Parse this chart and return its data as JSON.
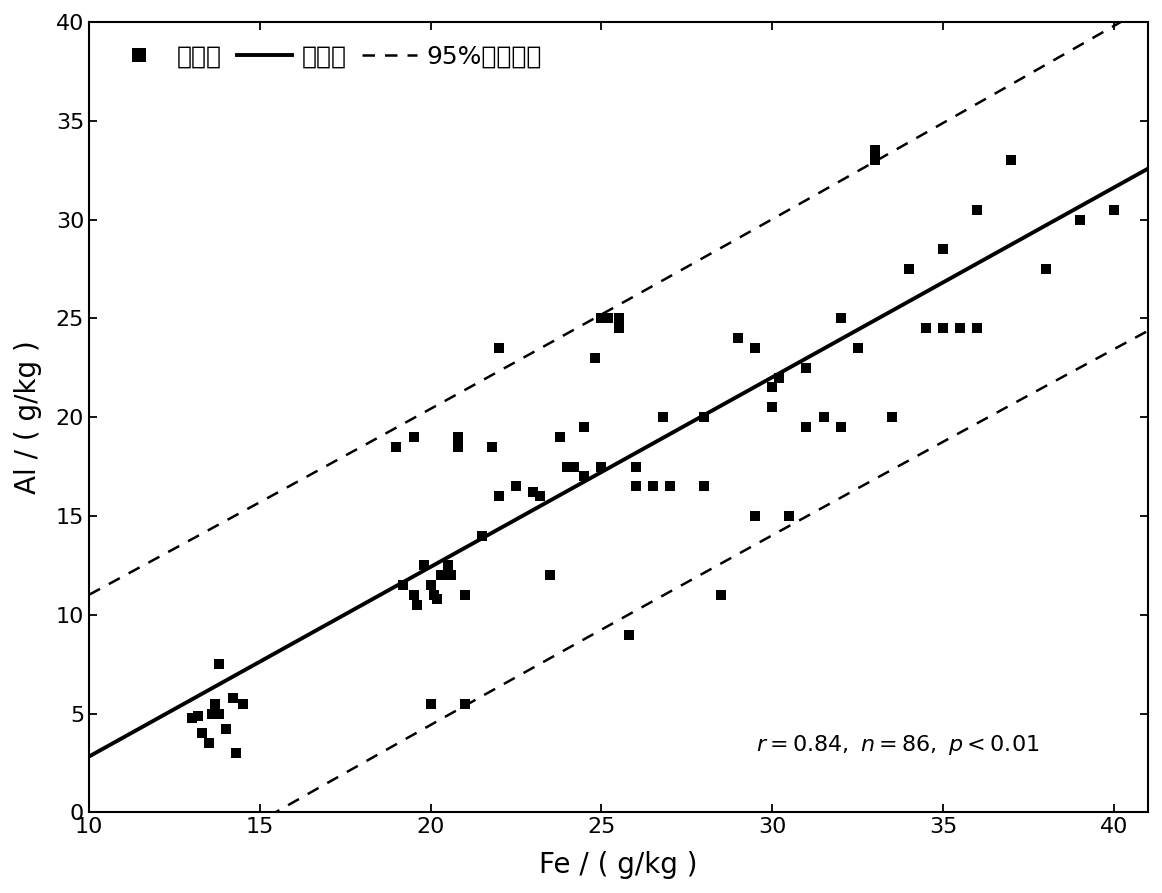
{
  "scatter_x": [
    13.0,
    13.2,
    13.3,
    13.5,
    13.6,
    13.7,
    13.8,
    14.0,
    14.2,
    14.3,
    19.0,
    19.2,
    19.5,
    19.6,
    19.8,
    20.0,
    20.1,
    20.2,
    20.3,
    20.5,
    20.6,
    20.8,
    21.0,
    21.5,
    22.0,
    22.5,
    23.0,
    23.2,
    23.5,
    23.8,
    24.0,
    24.2,
    24.5,
    24.8,
    25.0,
    25.0,
    25.2,
    25.5,
    25.8,
    26.0,
    26.5,
    27.0,
    28.0,
    28.5,
    29.0,
    29.5,
    30.0,
    30.2,
    30.5,
    31.0,
    31.5,
    32.0,
    32.5,
    33.0,
    33.5,
    34.0,
    34.5,
    35.0,
    35.5,
    36.0,
    19.5,
    20.8,
    21.8,
    22.0,
    23.8,
    24.5,
    25.5,
    26.0,
    26.8,
    28.0,
    29.5,
    30.0,
    31.0,
    32.0,
    33.0,
    34.0,
    35.0,
    36.0,
    37.0,
    38.0,
    39.0,
    40.0,
    13.8,
    14.5,
    20.0,
    21.0
  ],
  "scatter_y": [
    4.8,
    4.9,
    4.0,
    3.5,
    5.0,
    5.5,
    5.0,
    4.2,
    5.8,
    3.0,
    18.5,
    11.5,
    11.0,
    10.5,
    12.5,
    11.5,
    11.0,
    10.8,
    12.0,
    12.5,
    12.0,
    18.5,
    11.0,
    14.0,
    16.0,
    16.5,
    16.2,
    16.0,
    12.0,
    19.0,
    17.5,
    17.5,
    17.0,
    23.0,
    25.0,
    17.5,
    25.0,
    25.0,
    9.0,
    17.5,
    16.5,
    16.5,
    16.5,
    11.0,
    24.0,
    23.5,
    21.5,
    22.0,
    15.0,
    22.5,
    20.0,
    19.5,
    23.5,
    33.5,
    20.0,
    27.5,
    24.5,
    24.5,
    24.5,
    30.5,
    19.0,
    19.0,
    18.5,
    23.5,
    19.0,
    19.5,
    24.5,
    16.5,
    20.0,
    20.0,
    15.0,
    20.5,
    19.5,
    25.0,
    33.0,
    27.5,
    28.5,
    24.5,
    33.0,
    27.5,
    30.0,
    30.5,
    7.5,
    5.5,
    5.5,
    5.5
  ],
  "xlabel": "Fe / ( g/kg )",
  "ylabel": "Al / ( g/kg )",
  "legend_sample": "样本点",
  "legend_reg": "回归线",
  "legend_ci": "95%置信区间",
  "xlim": [
    10,
    41
  ],
  "ylim": [
    0,
    40
  ],
  "xticks": [
    10,
    15,
    20,
    25,
    30,
    35,
    40
  ],
  "yticks": [
    0,
    5,
    10,
    15,
    20,
    25,
    30,
    35,
    40
  ],
  "marker_color": "#000000",
  "line_color": "#000000",
  "ci_color": "#000000",
  "background_color": "#ffffff",
  "fontsize_axis_label": 20,
  "fontsize_tick": 16,
  "fontsize_legend": 18,
  "fontsize_stats": 16,
  "stats_text": "r = 0.84, n = 86, p < 0.01"
}
